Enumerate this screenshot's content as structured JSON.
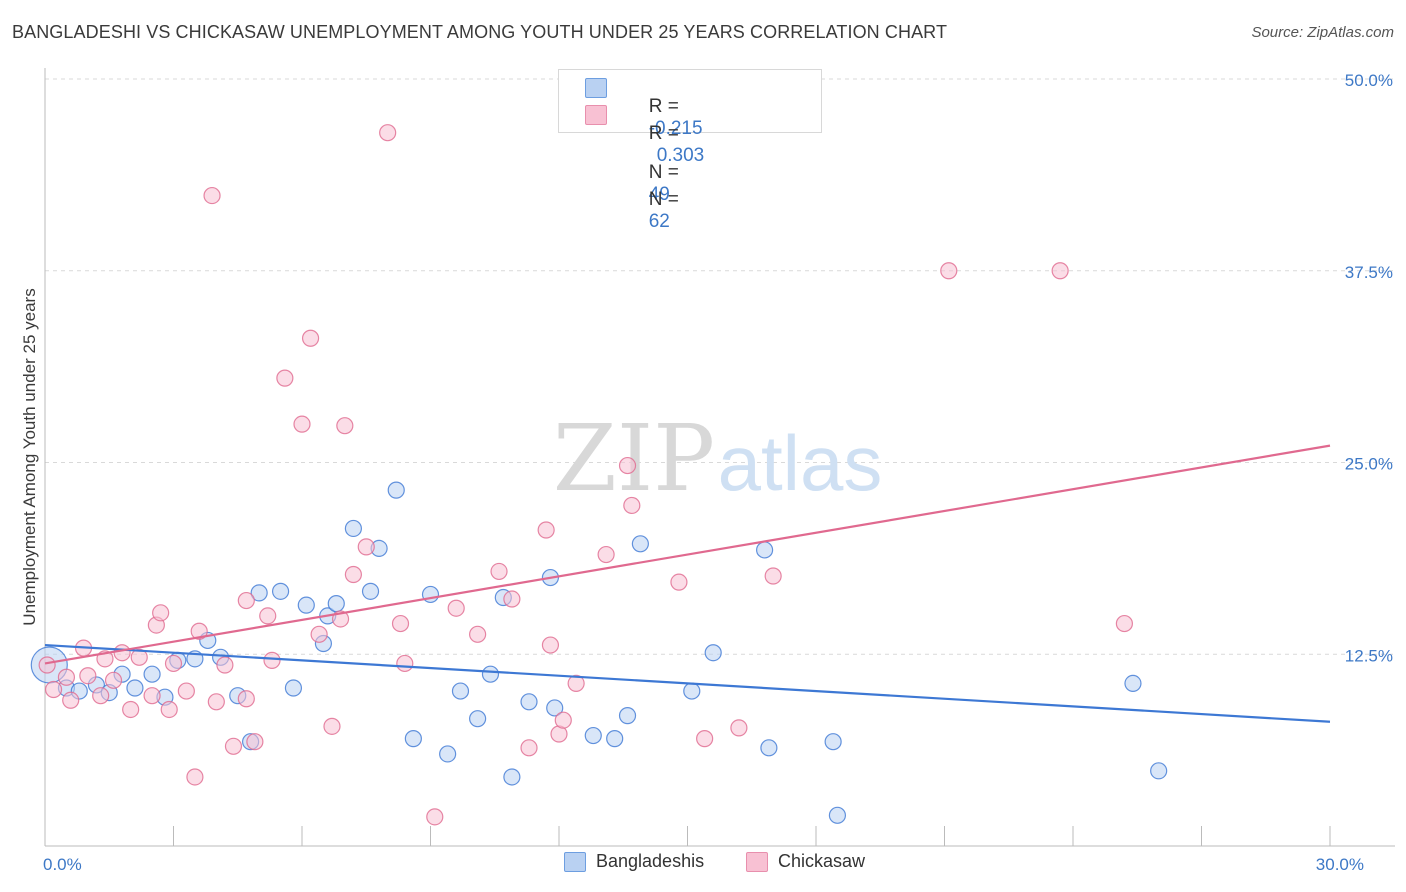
{
  "title": "BANGLADESHI VS CHICKASAW UNEMPLOYMENT AMONG YOUTH UNDER 25 YEARS CORRELATION CHART",
  "source": "Source: ZipAtlas.com",
  "watermark": {
    "zip": "ZIP",
    "atlas": "atlas"
  },
  "legend_top": [
    {
      "r_label": "R =",
      "r_value": "-0.215",
      "n_label": "N =",
      "n_value": "49",
      "color": "#a9c8f0"
    },
    {
      "r_label": "R =",
      "r_value": "0.303",
      "n_label": "N =",
      "n_value": "62",
      "color": "#f7b8cb"
    }
  ],
  "chart_data": {
    "type": "scatter",
    "title": "BANGLADESHI VS CHICKASAW UNEMPLOYMENT AMONG YOUTH UNDER 25 YEARS CORRELATION CHART",
    "xlabel": "",
    "ylabel": "Unemployment Among Youth under 25 years",
    "xlim": [
      0,
      30
    ],
    "ylim": [
      0,
      50
    ],
    "x_tick_labels": [
      "0.0%",
      "30.0%"
    ],
    "y_ticks": [
      12.5,
      25,
      37.5,
      50
    ],
    "y_tick_labels": [
      "12.5%",
      "25.0%",
      "37.5%",
      "50.0%"
    ],
    "grid": true,
    "legend_position": "bottom",
    "series": [
      {
        "name": "Bangladeshis",
        "color": "#3d78d4",
        "fill": "#b9d1f2",
        "trend": {
          "x": [
            0,
            30
          ],
          "y": [
            13.1,
            8.1
          ]
        },
        "points": [
          [
            0.1,
            11.8
          ],
          [
            0.5,
            10.3
          ],
          [
            0.8,
            10.1
          ],
          [
            1.2,
            10.5
          ],
          [
            1.5,
            10.0
          ],
          [
            1.8,
            11.2
          ],
          [
            2.1,
            10.3
          ],
          [
            2.5,
            11.2
          ],
          [
            2.8,
            9.7
          ],
          [
            3.1,
            12.1
          ],
          [
            3.5,
            12.2
          ],
          [
            3.8,
            13.4
          ],
          [
            4.1,
            12.3
          ],
          [
            4.5,
            9.8
          ],
          [
            4.8,
            6.8
          ],
          [
            5.0,
            16.5
          ],
          [
            5.5,
            16.6
          ],
          [
            5.8,
            10.3
          ],
          [
            6.1,
            15.7
          ],
          [
            6.5,
            13.2
          ],
          [
            6.6,
            15.0
          ],
          [
            6.8,
            15.8
          ],
          [
            7.2,
            20.7
          ],
          [
            7.6,
            16.6
          ],
          [
            7.8,
            19.4
          ],
          [
            8.2,
            23.2
          ],
          [
            8.6,
            7.0
          ],
          [
            9.0,
            16.4
          ],
          [
            9.4,
            6.0
          ],
          [
            9.7,
            10.1
          ],
          [
            10.1,
            8.3
          ],
          [
            10.4,
            11.2
          ],
          [
            10.7,
            16.2
          ],
          [
            10.9,
            4.5
          ],
          [
            11.3,
            9.4
          ],
          [
            11.8,
            17.5
          ],
          [
            11.9,
            9.0
          ],
          [
            12.8,
            7.2
          ],
          [
            13.3,
            7.0
          ],
          [
            13.6,
            8.5
          ],
          [
            13.9,
            19.7
          ],
          [
            15.1,
            10.1
          ],
          [
            15.6,
            12.6
          ],
          [
            16.9,
            6.4
          ],
          [
            16.8,
            19.3
          ],
          [
            18.4,
            6.8
          ],
          [
            18.5,
            2.0
          ],
          [
            25.4,
            10.6
          ],
          [
            26.0,
            4.9
          ]
        ]
      },
      {
        "name": "Chickasaw",
        "color": "#e0698f",
        "fill": "#f8c1d3",
        "trend": {
          "x": [
            0,
            30
          ],
          "y": [
            11.9,
            26.1
          ]
        },
        "points": [
          [
            0.2,
            10.2
          ],
          [
            0.5,
            11.0
          ],
          [
            0.6,
            9.5
          ],
          [
            0.9,
            12.9
          ],
          [
            1.0,
            11.1
          ],
          [
            1.3,
            9.8
          ],
          [
            1.4,
            12.2
          ],
          [
            1.6,
            10.8
          ],
          [
            1.8,
            12.6
          ],
          [
            2.0,
            8.9
          ],
          [
            2.2,
            12.3
          ],
          [
            2.5,
            9.8
          ],
          [
            2.6,
            14.4
          ],
          [
            2.7,
            15.2
          ],
          [
            2.9,
            8.9
          ],
          [
            3.0,
            11.9
          ],
          [
            3.3,
            10.1
          ],
          [
            3.5,
            4.5
          ],
          [
            3.6,
            14.0
          ],
          [
            3.9,
            42.4
          ],
          [
            4.0,
            9.4
          ],
          [
            4.2,
            11.8
          ],
          [
            4.4,
            6.5
          ],
          [
            4.7,
            9.6
          ],
          [
            4.7,
            16.0
          ],
          [
            4.9,
            6.8
          ],
          [
            5.2,
            15.0
          ],
          [
            5.3,
            12.1
          ],
          [
            5.6,
            30.5
          ],
          [
            6.0,
            27.5
          ],
          [
            6.2,
            33.1
          ],
          [
            6.4,
            13.8
          ],
          [
            6.7,
            7.8
          ],
          [
            6.9,
            14.8
          ],
          [
            7.0,
            27.4
          ],
          [
            7.2,
            17.7
          ],
          [
            7.5,
            19.5
          ],
          [
            8.0,
            46.5
          ],
          [
            8.3,
            14.5
          ],
          [
            8.4,
            11.9
          ],
          [
            9.1,
            1.9
          ],
          [
            9.6,
            15.5
          ],
          [
            10.1,
            13.8
          ],
          [
            10.6,
            17.9
          ],
          [
            10.9,
            16.1
          ],
          [
            11.3,
            6.4
          ],
          [
            11.7,
            20.6
          ],
          [
            11.8,
            13.1
          ],
          [
            12.0,
            7.3
          ],
          [
            12.1,
            8.2
          ],
          [
            12.4,
            10.6
          ],
          [
            13.1,
            19.0
          ],
          [
            13.6,
            24.8
          ],
          [
            13.7,
            22.2
          ],
          [
            14.8,
            17.2
          ],
          [
            15.4,
            7.0
          ],
          [
            16.2,
            7.7
          ],
          [
            17.0,
            17.6
          ],
          [
            21.1,
            37.5
          ],
          [
            23.7,
            37.5
          ],
          [
            25.2,
            14.5
          ],
          [
            0.05,
            11.8
          ]
        ]
      }
    ]
  },
  "legend_bottom": [
    {
      "label": "Bangladeshis",
      "color": "#b9d1f2",
      "border": "#6d9ee0"
    },
    {
      "label": "Chickasaw",
      "color": "#f8c1d3",
      "border": "#e88fad"
    }
  ]
}
